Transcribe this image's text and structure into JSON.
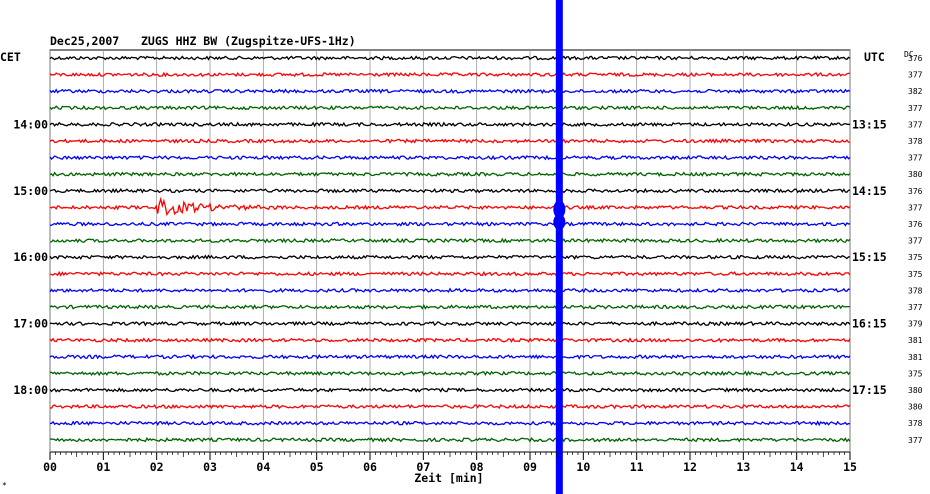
{
  "header": {
    "date": "Dec25,2007",
    "station": "ZUGS HHZ BW (Zugspitze-UFS-1Hz)",
    "left_timezone": "CET",
    "right_timezone": "UTC",
    "dc_label": "DC"
  },
  "chart_data": {
    "type": "line",
    "xlabel": "Zeit [min]",
    "x_range": [
      0,
      15
    ],
    "x_ticks": [
      "00",
      "01",
      "02",
      "03",
      "04",
      "05",
      "06",
      "07",
      "08",
      "09",
      "10",
      "11",
      "12",
      "13",
      "14",
      "15"
    ],
    "trace_count": 24,
    "trace_colors": [
      "#000000",
      "#ff0000",
      "#0000ff",
      "#006400"
    ],
    "left_hour_labels": [
      {
        "trace": 4,
        "label": "14:00"
      },
      {
        "trace": 8,
        "label": "15:00"
      },
      {
        "trace": 12,
        "label": "16:00"
      },
      {
        "trace": 16,
        "label": "17:00"
      },
      {
        "trace": 20,
        "label": "18:00"
      }
    ],
    "right_hour_labels": [
      {
        "trace": 4,
        "label": "13:15"
      },
      {
        "trace": 8,
        "label": "14:15"
      },
      {
        "trace": 12,
        "label": "15:15"
      },
      {
        "trace": 16,
        "label": "16:15"
      },
      {
        "trace": 20,
        "label": "17:15"
      }
    ],
    "dc_values": [
      "376",
      "377",
      "382",
      "377",
      "377",
      "378",
      "377",
      "380",
      "376",
      "377",
      "376",
      "377",
      "375",
      "375",
      "378",
      "377",
      "379",
      "381",
      "381",
      "375",
      "380",
      "380",
      "378",
      "377"
    ],
    "event": {
      "trace": 9,
      "start_min": 2.0,
      "end_min": 4.5
    },
    "marker": {
      "minute": 9.55,
      "color": "#0000ff"
    }
  },
  "footer": {
    "corner_mark": "*"
  }
}
